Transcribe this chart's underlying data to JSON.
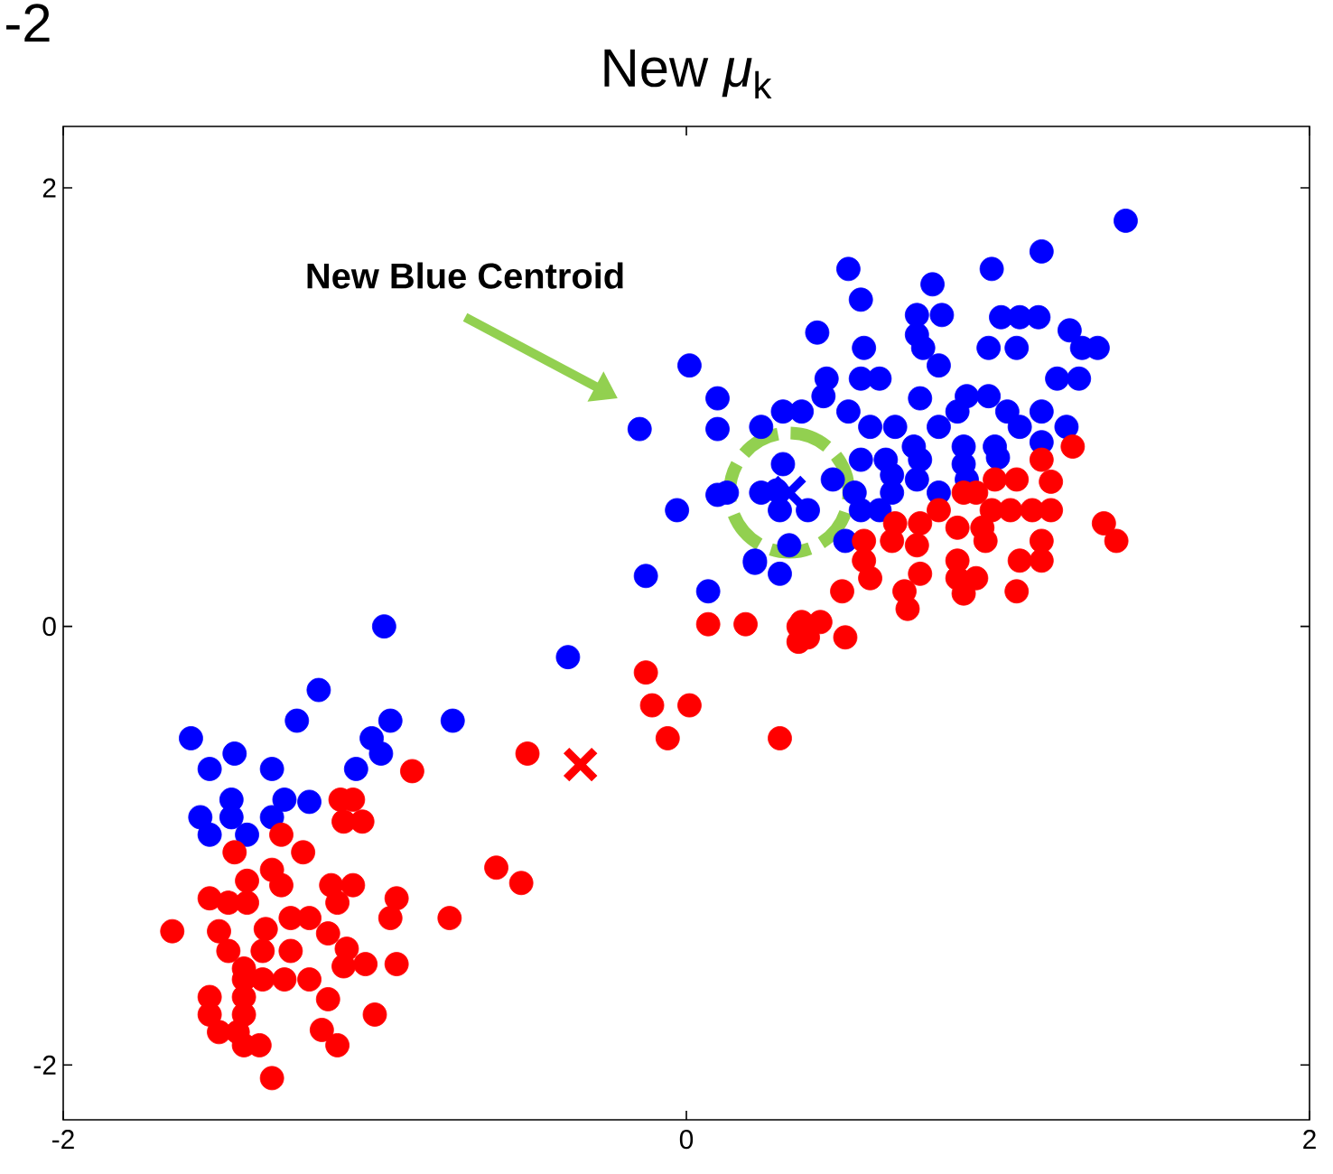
{
  "chart_data": {
    "type": "scatter",
    "title": "New *μ*$_{k}$",
    "annotations": [
      "New Blue Centroid",
      "-2"
    ],
    "xlim": [
      -2,
      2
    ],
    "ylim": [
      -2.25,
      2.28
    ],
    "xticks": [
      -2,
      0,
      2
    ],
    "yticks": [
      -2,
      0,
      2
    ],
    "grid": false,
    "series": [
      {
        "color": "#0000ff",
        "marker": "circle",
        "x": [
          -0.97,
          -1.18,
          -1.25,
          -0.95,
          -0.75,
          -1.59,
          -1.01,
          -1.45,
          -1.53,
          -1.33,
          -1.06,
          -0.98,
          -1.46,
          -1.29,
          -1.21,
          -1.56,
          -1.46,
          -1.33,
          -1.53,
          -1.41,
          0.01,
          0.1,
          -0.15,
          0.1,
          0.1,
          -0.03,
          -0.13,
          0.07,
          0.22,
          0.3,
          -0.38,
          1.41,
          1.14,
          0.52,
          0.98,
          0.79,
          0.56,
          0.74,
          0.82,
          1.01,
          1.07,
          1.13,
          0.42,
          0.74,
          1.23,
          0.57,
          0.97,
          1.06,
          1.27,
          1.32,
          0.76,
          0.81,
          0.45,
          0.56,
          0.62,
          1.19,
          1.26,
          0.44,
          0.75,
          0.9,
          0.97,
          0.31,
          0.37,
          0.52,
          0.87,
          1.03,
          1.14,
          0.24,
          0.59,
          0.67,
          0.81,
          1.07,
          1.22,
          0.73,
          0.89,
          0.99,
          1.14,
          0.56,
          0.64,
          0.75,
          0.89,
          1.0,
          0.31,
          0.47,
          0.66,
          0.74,
          0.9,
          0.24,
          0.29,
          0.54,
          0.66,
          0.81,
          0.13,
          0.3,
          0.39,
          0.56,
          0.62,
          0.33,
          0.51,
          0.22
        ],
        "values": [
          0.0,
          -0.29,
          -0.43,
          -0.43,
          -0.43,
          -0.51,
          -0.51,
          -0.58,
          -0.65,
          -0.65,
          -0.65,
          -0.58,
          -0.79,
          -0.79,
          -0.8,
          -0.87,
          -0.87,
          -0.87,
          -0.95,
          -0.95,
          1.19,
          1.04,
          0.9,
          0.9,
          0.6,
          0.53,
          0.23,
          0.16,
          0.29,
          0.24,
          -0.14,
          1.85,
          1.71,
          1.63,
          1.63,
          1.56,
          1.49,
          1.42,
          1.42,
          1.41,
          1.41,
          1.41,
          1.34,
          1.33,
          1.35,
          1.27,
          1.27,
          1.27,
          1.27,
          1.27,
          1.27,
          1.19,
          1.13,
          1.13,
          1.13,
          1.13,
          1.13,
          1.05,
          1.04,
          1.05,
          1.05,
          0.98,
          0.98,
          0.98,
          0.98,
          0.98,
          0.98,
          0.91,
          0.91,
          0.91,
          0.91,
          0.91,
          0.91,
          0.82,
          0.82,
          0.82,
          0.84,
          0.76,
          0.76,
          0.76,
          0.74,
          0.77,
          0.74,
          0.67,
          0.69,
          0.67,
          0.67,
          0.61,
          0.62,
          0.61,
          0.61,
          0.61,
          0.61,
          0.53,
          0.53,
          0.53,
          0.53,
          0.37,
          0.39,
          0.3
        ]
      },
      {
        "color": "#ff0000",
        "marker": "circle",
        "x": [
          -0.88,
          -1.11,
          -1.07,
          -1.1,
          -1.04,
          -1.3,
          -1.45,
          -1.23,
          -1.33,
          -1.41,
          -1.3,
          -1.14,
          -1.07,
          -1.12,
          -0.93,
          -1.53,
          -1.47,
          -1.41,
          -0.95,
          -0.76,
          -1.65,
          -1.5,
          -1.35,
          -1.27,
          -1.21,
          -1.15,
          -1.47,
          -1.36,
          -1.27,
          -1.09,
          -1.1,
          -1.03,
          -0.93,
          -1.42,
          -1.42,
          -1.36,
          -1.29,
          -1.21,
          -1.53,
          -1.42,
          -1.15,
          -1.53,
          -1.42,
          -1.0,
          -1.5,
          -1.44,
          -1.17,
          -1.42,
          -1.37,
          -1.12,
          -1.33,
          0.07,
          0.19,
          0.36,
          0.36,
          -0.13,
          -0.11,
          0.01,
          -0.06,
          0.3,
          -0.51,
          -0.61,
          -0.53,
          1.24,
          1.14,
          0.99,
          1.06,
          1.17,
          0.89,
          0.93,
          0.81,
          0.98,
          1.04,
          1.11,
          1.17,
          0.67,
          0.75,
          0.87,
          0.95,
          1.34,
          1.38,
          1.14,
          0.57,
          0.66,
          0.74,
          0.96,
          1.07,
          1.14,
          0.87,
          0.57,
          0.59,
          0.75,
          0.87,
          0.93,
          0.5,
          0.7,
          0.89,
          1.06,
          0.71,
          0.37,
          0.43,
          0.51,
          0.39
        ],
        "values": [
          -0.66,
          -0.79,
          -0.79,
          -0.89,
          -0.89,
          -0.95,
          -1.03,
          -1.03,
          -1.11,
          -1.16,
          -1.18,
          -1.18,
          -1.18,
          -1.26,
          -1.24,
          -1.24,
          -1.26,
          -1.26,
          -1.33,
          -1.33,
          -1.39,
          -1.39,
          -1.38,
          -1.33,
          -1.33,
          -1.4,
          -1.48,
          -1.48,
          -1.48,
          -1.47,
          -1.55,
          -1.54,
          -1.54,
          -1.56,
          -1.61,
          -1.61,
          -1.61,
          -1.61,
          -1.69,
          -1.69,
          -1.7,
          -1.77,
          -1.77,
          -1.77,
          -1.85,
          -1.85,
          -1.84,
          -1.91,
          -1.91,
          -1.91,
          -2.06,
          0.01,
          0.01,
          0.0,
          -0.07,
          -0.21,
          -0.36,
          -0.36,
          -0.51,
          -0.51,
          -0.58,
          -1.1,
          -1.17,
          0.82,
          0.76,
          0.67,
          0.67,
          0.66,
          0.61,
          0.61,
          0.53,
          0.53,
          0.53,
          0.53,
          0.53,
          0.47,
          0.47,
          0.45,
          0.45,
          0.47,
          0.39,
          0.39,
          0.39,
          0.39,
          0.37,
          0.39,
          0.3,
          0.3,
          0.3,
          0.3,
          0.22,
          0.24,
          0.22,
          0.22,
          0.16,
          0.16,
          0.15,
          0.16,
          0.08,
          0.02,
          0.02,
          -0.05,
          -0.05
        ]
      },
      {
        "color": "#0000ff",
        "marker": "cross",
        "x": [
          0.33
        ],
        "values": [
          0.61
        ]
      },
      {
        "color": "#ff0000",
        "marker": "cross",
        "x": [
          -0.34
        ],
        "values": [
          -0.63
        ]
      }
    ]
  }
}
